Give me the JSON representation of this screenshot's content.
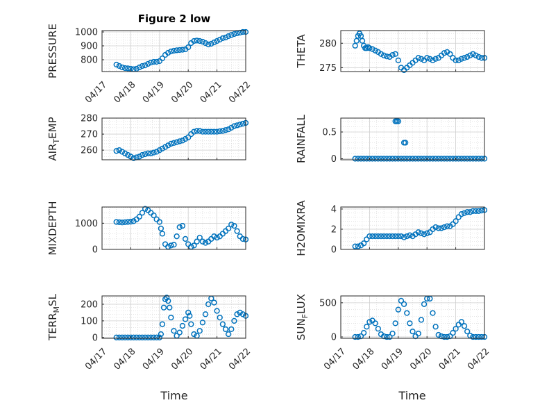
{
  "figure": {
    "title": "Figure 2 low",
    "xlabel_left": "Time",
    "xlabel_right": "Time"
  },
  "chart_data": [
    {
      "type": "scatter",
      "ylabel": "PRESSURE",
      "ylim": [
        715,
        1010
      ],
      "yticks": [
        800,
        900,
        1000
      ],
      "xticks": [
        "04/17",
        "04/18",
        "04/19",
        "04/20",
        "04/21",
        "04/22"
      ],
      "xlim": [
        0,
        5
      ],
      "grid": true,
      "title": "Figure 2 low",
      "series": [
        {
          "x": [
            0.5,
            0.6,
            0.7,
            0.8,
            0.9,
            1.0,
            1.1,
            1.2,
            1.3,
            1.4,
            1.5,
            1.6,
            1.7,
            1.8,
            1.9,
            2.0,
            2.1,
            2.2,
            2.3,
            2.4,
            2.5,
            2.6,
            2.7,
            2.8,
            2.9,
            3.0,
            3.1,
            3.2,
            3.3,
            3.4,
            3.5,
            3.6,
            3.7,
            3.8,
            3.9,
            4.0,
            4.1,
            4.2,
            4.3,
            4.4,
            4.5,
            4.6,
            4.7,
            4.8,
            4.9,
            5.0
          ],
          "y": [
            765,
            755,
            745,
            740,
            738,
            735,
            732,
            735,
            745,
            755,
            760,
            770,
            780,
            785,
            785,
            790,
            810,
            835,
            850,
            860,
            865,
            868,
            870,
            872,
            875,
            890,
            920,
            935,
            938,
            935,
            930,
            920,
            910,
            915,
            925,
            935,
            945,
            955,
            960,
            970,
            978,
            985,
            990,
            995,
            1000,
            1000
          ]
        }
      ]
    },
    {
      "type": "scatter",
      "ylabel": "THETA",
      "ylim": [
        274.2,
        282.6
      ],
      "yticks": [
        275,
        280
      ],
      "xticks": [],
      "xlim": [
        0,
        5
      ],
      "grid": true,
      "series": [
        {
          "x": [
            0.5,
            0.55,
            0.6,
            0.65,
            0.7,
            0.75,
            0.8,
            0.85,
            0.9,
            0.95,
            1.0,
            1.1,
            1.2,
            1.3,
            1.4,
            1.5,
            1.6,
            1.7,
            1.8,
            1.9,
            2.0,
            2.1,
            2.2,
            2.3,
            2.4,
            2.5,
            2.6,
            2.7,
            2.8,
            2.9,
            3.0,
            3.1,
            3.2,
            3.3,
            3.4,
            3.5,
            3.6,
            3.7,
            3.8,
            3.9,
            4.0,
            4.1,
            4.2,
            4.3,
            4.4,
            4.5,
            4.6,
            4.7,
            4.8,
            4.9,
            5.0
          ],
          "y": [
            279.5,
            280.5,
            281.5,
            282,
            281.5,
            280.5,
            279.5,
            279,
            279,
            279.2,
            279,
            278.8,
            278.5,
            278.2,
            277.8,
            277.5,
            277.3,
            277.2,
            277.6,
            277.8,
            276.5,
            275,
            274.5,
            275,
            275.5,
            276,
            276.5,
            277,
            276.8,
            276.5,
            277,
            276.8,
            276.5,
            276.8,
            277,
            277.5,
            278,
            278.2,
            277.8,
            277,
            276.5,
            276.5,
            276.8,
            277,
            277.2,
            277.5,
            277.8,
            277.5,
            277.2,
            277,
            277
          ]
        }
      ]
    },
    {
      "type": "scatter",
      "ylabel": "AIR_TEMP",
      "ylim": [
        254,
        280
      ],
      "yticks": [
        260,
        270,
        280
      ],
      "xticks": [],
      "xlim": [
        0,
        5
      ],
      "grid": true,
      "series": [
        {
          "x": [
            0.5,
            0.6,
            0.7,
            0.8,
            0.9,
            1.0,
            1.1,
            1.2,
            1.3,
            1.4,
            1.5,
            1.6,
            1.7,
            1.8,
            1.9,
            2.0,
            2.1,
            2.2,
            2.3,
            2.4,
            2.5,
            2.6,
            2.7,
            2.8,
            2.9,
            3.0,
            3.1,
            3.2,
            3.3,
            3.4,
            3.5,
            3.6,
            3.7,
            3.8,
            3.9,
            4.0,
            4.1,
            4.2,
            4.3,
            4.4,
            4.5,
            4.6,
            4.7,
            4.8,
            4.9,
            5.0
          ],
          "y": [
            259.5,
            260,
            259,
            258,
            257,
            256,
            255,
            255.5,
            256,
            257,
            257.5,
            258,
            258,
            258.5,
            259,
            260,
            261,
            262,
            263,
            264,
            264.5,
            265,
            265.5,
            266,
            267,
            268,
            270,
            271.5,
            272,
            272,
            271.5,
            271.5,
            271.5,
            271.5,
            271.5,
            271.5,
            271.8,
            272,
            272.5,
            273,
            274,
            275,
            275.5,
            276,
            276.5,
            277
          ]
        }
      ]
    },
    {
      "type": "scatter",
      "ylabel": "RAINFALL",
      "ylim": [
        -0.02,
        0.76
      ],
      "yticks": [
        0,
        0.5
      ],
      "xticks": [],
      "xlim": [
        0,
        5
      ],
      "grid": true,
      "series": [
        {
          "x": [
            0.5,
            0.6,
            0.7,
            0.8,
            0.9,
            1.0,
            1.1,
            1.2,
            1.3,
            1.4,
            1.5,
            1.6,
            1.7,
            1.8,
            1.9,
            2.0,
            2.1,
            2.2,
            2.3,
            2.4,
            2.5,
            2.6,
            2.7,
            2.8,
            2.9,
            3.0,
            3.1,
            3.2,
            3.3,
            3.4,
            3.5,
            3.6,
            3.7,
            3.8,
            3.9,
            4.0,
            4.1,
            4.2,
            4.3,
            4.4,
            4.5,
            4.6,
            4.7,
            4.8,
            4.9,
            5.0,
            1.9,
            1.95,
            2.0,
            2.2,
            2.25
          ],
          "y": [
            0,
            0,
            0,
            0,
            0,
            0,
            0,
            0,
            0,
            0,
            0,
            0,
            0,
            0,
            0,
            0,
            0,
            0,
            0,
            0,
            0,
            0,
            0,
            0,
            0,
            0,
            0,
            0,
            0,
            0,
            0,
            0,
            0,
            0,
            0,
            0,
            0,
            0,
            0,
            0,
            0,
            0,
            0,
            0,
            0,
            0,
            0.7,
            0.7,
            0.7,
            0.3,
            0.3
          ]
        }
      ]
    },
    {
      "type": "scatter",
      "ylabel": "MIXDEPTH",
      "ylim": [
        0,
        1620
      ],
      "yticks": [
        0,
        1000
      ],
      "xticks": [],
      "xlim": [
        0,
        5
      ],
      "grid": true,
      "series": [
        {
          "x": [
            0.5,
            0.6,
            0.7,
            0.8,
            0.9,
            1.0,
            1.1,
            1.2,
            1.3,
            1.4,
            1.5,
            1.6,
            1.7,
            1.8,
            1.9,
            2.0,
            2.05,
            2.1,
            2.2,
            2.3,
            2.4,
            2.5,
            2.6,
            2.7,
            2.8,
            2.9,
            3.0,
            3.1,
            3.2,
            3.3,
            3.4,
            3.5,
            3.6,
            3.7,
            3.8,
            3.9,
            4.0,
            4.1,
            4.2,
            4.3,
            4.4,
            4.5,
            4.6,
            4.7,
            4.8,
            4.9,
            5.0
          ],
          "y": [
            1050,
            1040,
            1030,
            1040,
            1050,
            1060,
            1080,
            1150,
            1250,
            1400,
            1550,
            1500,
            1400,
            1300,
            1150,
            1050,
            800,
            600,
            200,
            100,
            150,
            180,
            500,
            850,
            900,
            400,
            200,
            100,
            150,
            300,
            450,
            300,
            250,
            300,
            400,
            500,
            450,
            500,
            600,
            700,
            800,
            950,
            900,
            700,
            500,
            400,
            380
          ]
        }
      ]
    },
    {
      "type": "scatter",
      "ylabel": "H2OMIXRA",
      "ylim": [
        0,
        4.2
      ],
      "yticks": [
        0,
        2,
        4
      ],
      "xticks": [],
      "xlim": [
        0,
        5
      ],
      "grid": true,
      "series": [
        {
          "x": [
            0.5,
            0.6,
            0.7,
            0.8,
            0.9,
            1.0,
            1.1,
            1.2,
            1.3,
            1.4,
            1.5,
            1.6,
            1.7,
            1.8,
            1.9,
            2.0,
            2.1,
            2.2,
            2.3,
            2.4,
            2.5,
            2.6,
            2.7,
            2.8,
            2.9,
            3.0,
            3.1,
            3.2,
            3.3,
            3.4,
            3.5,
            3.6,
            3.7,
            3.8,
            3.9,
            4.0,
            4.1,
            4.2,
            4.3,
            4.4,
            4.5,
            4.6,
            4.7,
            4.8,
            4.9,
            5.0
          ],
          "y": [
            0.3,
            0.3,
            0.4,
            0.6,
            1.0,
            1.3,
            1.3,
            1.3,
            1.3,
            1.3,
            1.3,
            1.3,
            1.3,
            1.3,
            1.3,
            1.3,
            1.3,
            1.2,
            1.3,
            1.4,
            1.3,
            1.5,
            1.7,
            1.6,
            1.5,
            1.6,
            1.7,
            2.0,
            2.2,
            2.1,
            2.1,
            2.2,
            2.3,
            2.3,
            2.5,
            2.8,
            3.2,
            3.5,
            3.6,
            3.7,
            3.7,
            3.8,
            3.8,
            3.8,
            3.85,
            3.9
          ]
        }
      ]
    },
    {
      "type": "scatter",
      "ylabel": "TERR_MSL",
      "ylim": [
        -5,
        250
      ],
      "yticks": [
        0,
        100,
        200
      ],
      "xticks": [
        "04/17",
        "04/18",
        "04/19",
        "04/20",
        "04/21",
        "04/22"
      ],
      "xlim": [
        0,
        5
      ],
      "grid": true,
      "series": [
        {
          "x": [
            0.5,
            0.6,
            0.7,
            0.8,
            0.9,
            1.0,
            1.1,
            1.2,
            1.3,
            1.4,
            1.5,
            1.6,
            1.7,
            1.8,
            1.9,
            2.0,
            2.05,
            2.1,
            2.15,
            2.2,
            2.25,
            2.3,
            2.35,
            2.4,
            2.5,
            2.6,
            2.7,
            2.8,
            2.9,
            3.0,
            3.05,
            3.1,
            3.2,
            3.3,
            3.4,
            3.5,
            3.6,
            3.7,
            3.8,
            3.9,
            4.0,
            4.1,
            4.2,
            4.3,
            4.4,
            4.5,
            4.6,
            4.7,
            4.8,
            4.9,
            5.0
          ],
          "y": [
            0,
            0,
            0,
            0,
            0,
            0,
            0,
            0,
            0,
            0,
            0,
            0,
            0,
            0,
            0,
            0,
            20,
            80,
            180,
            230,
            240,
            220,
            180,
            120,
            40,
            10,
            30,
            70,
            110,
            150,
            130,
            80,
            20,
            10,
            40,
            90,
            140,
            200,
            235,
            210,
            160,
            120,
            80,
            50,
            20,
            50,
            100,
            140,
            150,
            140,
            130
          ]
        }
      ]
    },
    {
      "type": "scatter",
      "ylabel": "SUN_FLUX",
      "ylim": [
        -20,
        600
      ],
      "yticks": [
        0,
        500
      ],
      "xticks": [
        "04/17",
        "04/18",
        "04/19",
        "04/20",
        "04/21",
        "04/22"
      ],
      "xlim": [
        0,
        5
      ],
      "grid": true,
      "series": [
        {
          "x": [
            0.5,
            0.6,
            0.7,
            0.8,
            0.9,
            1.0,
            1.1,
            1.2,
            1.3,
            1.4,
            1.5,
            1.6,
            1.7,
            1.8,
            1.9,
            2.0,
            2.1,
            2.2,
            2.3,
            2.4,
            2.5,
            2.6,
            2.7,
            2.8,
            2.9,
            3.0,
            3.1,
            3.2,
            3.3,
            3.4,
            3.5,
            3.6,
            3.7,
            3.8,
            3.9,
            4.0,
            4.1,
            4.2,
            4.3,
            4.4,
            4.5,
            4.6,
            4.7,
            4.8,
            4.9,
            5.0
          ],
          "y": [
            0,
            0,
            10,
            60,
            150,
            220,
            240,
            200,
            120,
            40,
            10,
            0,
            0,
            50,
            200,
            400,
            530,
            480,
            350,
            200,
            80,
            10,
            50,
            250,
            480,
            560,
            560,
            350,
            150,
            30,
            10,
            0,
            0,
            10,
            60,
            120,
            180,
            220,
            160,
            80,
            20,
            0,
            0,
            0,
            0,
            0
          ]
        }
      ]
    }
  ]
}
